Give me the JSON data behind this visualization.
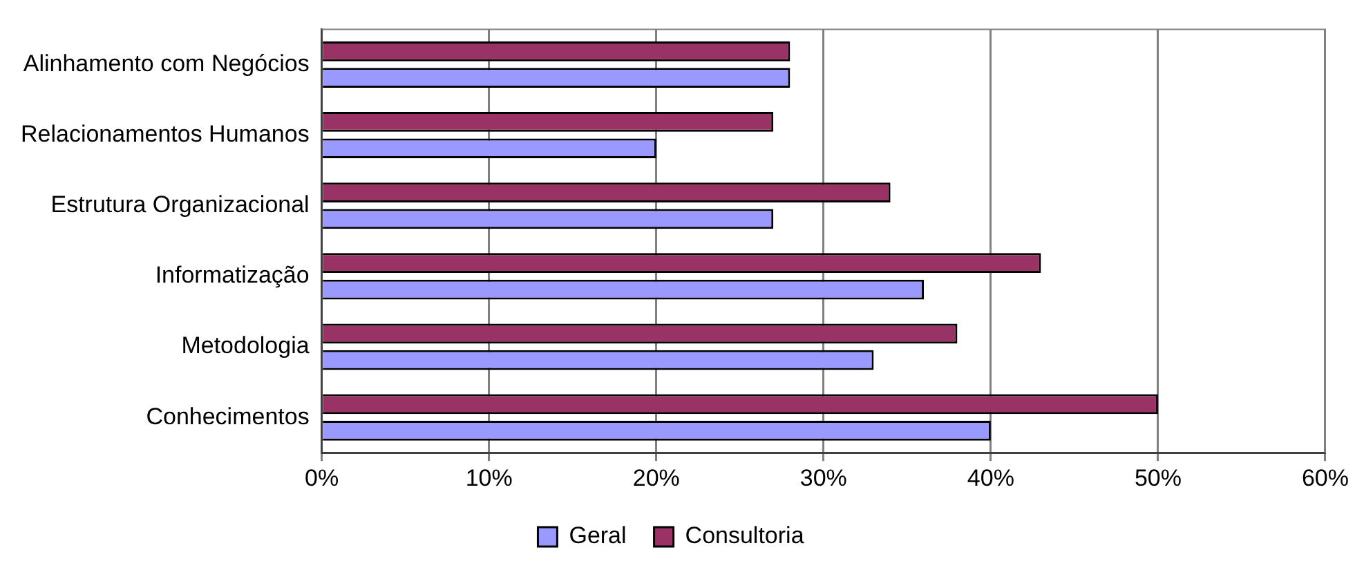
{
  "chart_data": {
    "type": "bar",
    "orientation": "horizontal",
    "categories": [
      "Alinhamento com Negócios",
      "Relacionamentos Humanos",
      "Estrutura Organizacional",
      "Informatização",
      "Metodologia",
      "Conhecimentos"
    ],
    "series": [
      {
        "name": "Geral",
        "color": "#9999ff",
        "values": [
          0.28,
          0.2,
          0.27,
          0.36,
          0.33,
          0.4
        ]
      },
      {
        "name": "Consultoria",
        "color": "#993366",
        "values": [
          0.28,
          0.27,
          0.34,
          0.43,
          0.38,
          0.5
        ]
      }
    ],
    "xlim": [
      0,
      0.6
    ],
    "xticks": [
      {
        "value": 0,
        "label": "0%"
      },
      {
        "value": 0.1,
        "label": "10%"
      },
      {
        "value": 0.2,
        "label": "20%"
      },
      {
        "value": 0.3,
        "label": "30%"
      },
      {
        "value": 0.4,
        "label": "40%"
      },
      {
        "value": 0.5,
        "label": "50%"
      },
      {
        "value": 0.6,
        "label": "60%"
      }
    ],
    "grid": "x",
    "legend": "bottom"
  }
}
